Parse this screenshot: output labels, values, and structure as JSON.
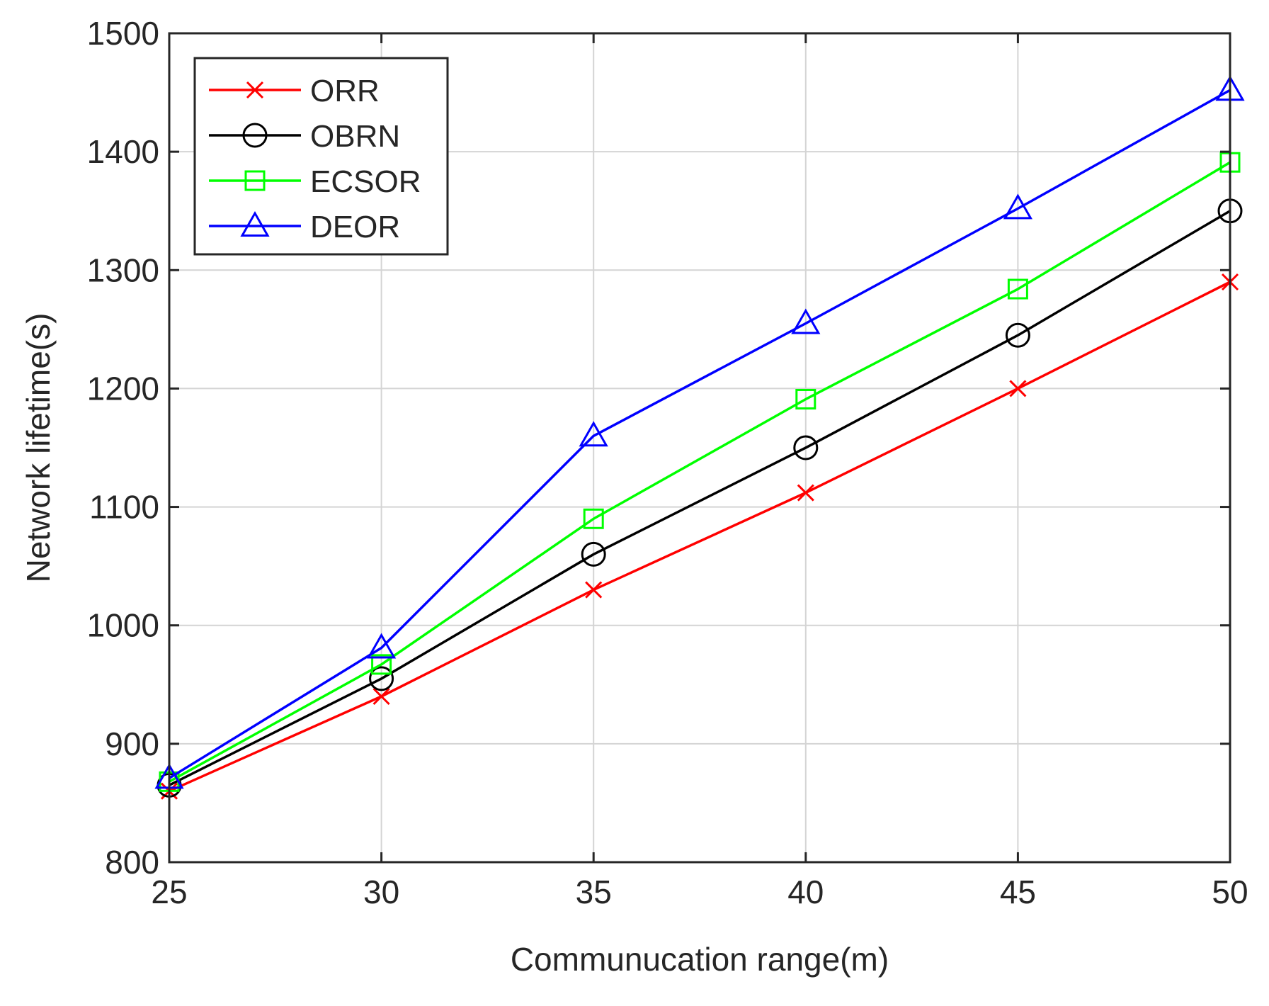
{
  "chart_data": {
    "type": "line",
    "title": "",
    "xlabel": "Communucation range(m)",
    "ylabel": "Network lifetime(s)",
    "x": [
      25,
      30,
      35,
      40,
      45,
      50
    ],
    "xlim": [
      25,
      50
    ],
    "ylim": [
      800,
      1500
    ],
    "xticks": [
      25,
      30,
      35,
      40,
      45,
      50
    ],
    "yticks": [
      800,
      900,
      1000,
      1100,
      1200,
      1300,
      1400,
      1500
    ],
    "grid": true,
    "legend_position": "top-left",
    "series": [
      {
        "name": "ORR",
        "color": "#ff0000",
        "marker": "x",
        "values": [
          860,
          940,
          1030,
          1112,
          1200,
          1290
        ]
      },
      {
        "name": "OBRN",
        "color": "#000000",
        "marker": "circle",
        "values": [
          865,
          955,
          1060,
          1150,
          1245,
          1350
        ]
      },
      {
        "name": "ECSOR",
        "color": "#00ff00",
        "marker": "square",
        "values": [
          868,
          967,
          1090,
          1191,
          1284,
          1391
        ]
      },
      {
        "name": "DEOR",
        "color": "#0000ff",
        "marker": "triangle",
        "values": [
          871,
          981,
          1160,
          1255,
          1352,
          1452
        ]
      }
    ]
  }
}
